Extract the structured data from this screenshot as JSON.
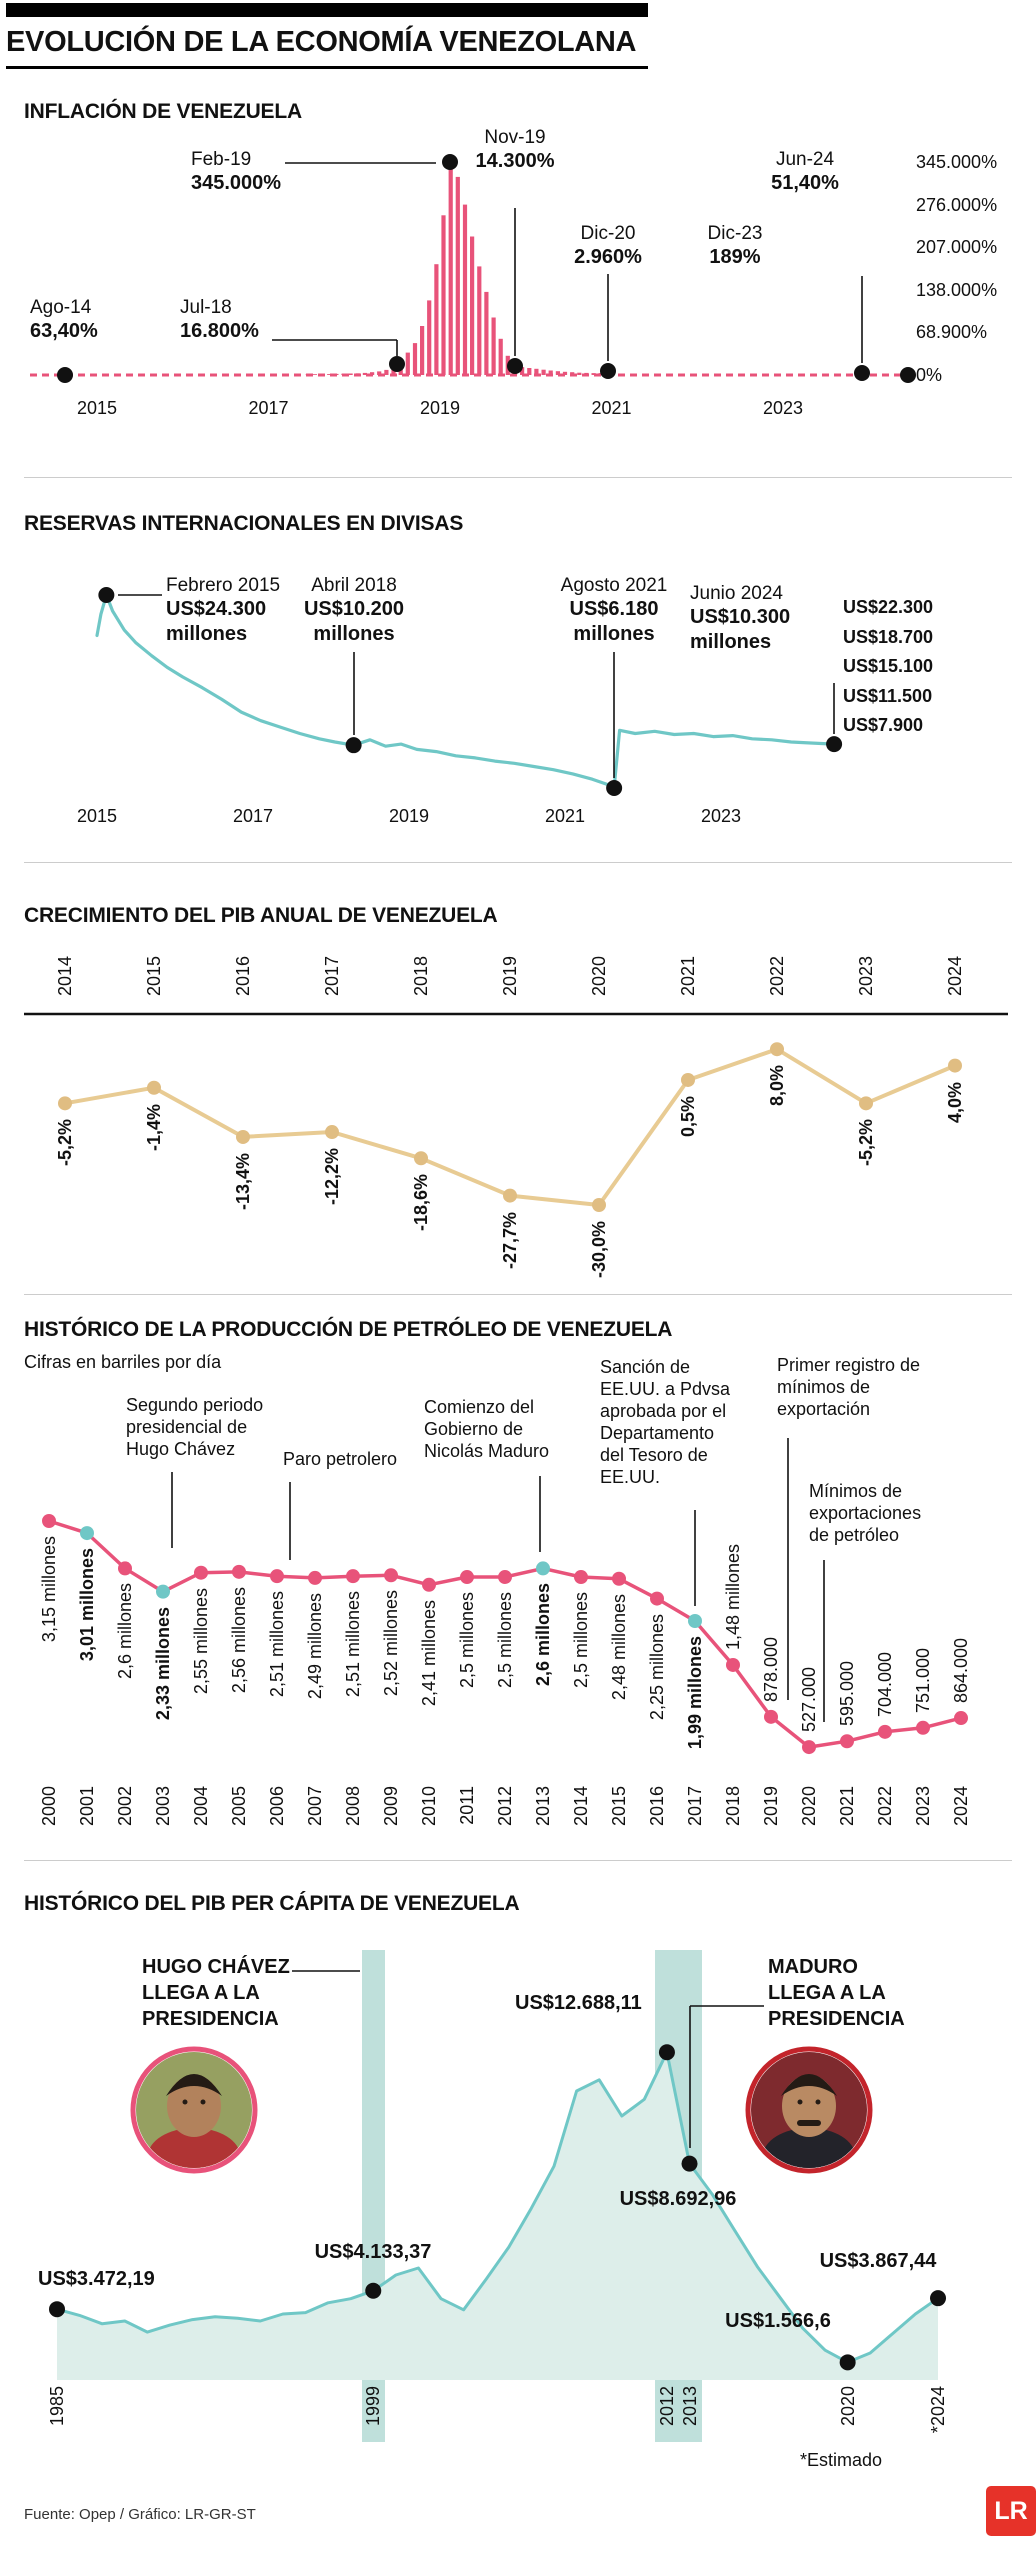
{
  "header": {
    "title": "EVOLUCIÓN DE LA ECONOMÍA VENEZOLANA"
  },
  "footer": {
    "source": "Fuente: Opep / Gráfico: LR-GR-ST",
    "estimate_note": "*Estimado",
    "logo": "LR"
  },
  "colors": {
    "pink": "#e8537a",
    "teal": "#6fc7c6",
    "tan": "#e8cb93",
    "tan_dot": "#e0bd82",
    "band": "#bfe0db",
    "area_fill": "#ddeeea",
    "ink": "#111111",
    "logo_red": "#e63229",
    "divider": "#cccccc"
  },
  "chart_data": [
    {
      "id": "inflation",
      "type": "bar",
      "title": "INFLACIÓN DE VENEZUELA",
      "unit": "%",
      "y_ticks": [
        "345.000%",
        "276.000%",
        "207.000%",
        "138.000%",
        "68.900%",
        "0%"
      ],
      "x_ticks": [
        "2015",
        "2017",
        "2019",
        "2021",
        "2023"
      ],
      "key_points": [
        {
          "date": "Ago-14",
          "value_label": "63,40%",
          "t": 2014.58,
          "value": 63.4
        },
        {
          "date": "Jul-18",
          "value_label": "16.800%",
          "t": 2018.5,
          "value": 16800
        },
        {
          "date": "Feb-19",
          "value_label": "345.000%",
          "t": 2019.08,
          "value": 345000
        },
        {
          "date": "Nov-19",
          "value_label": "14.300%",
          "t": 2019.83,
          "value": 14300
        },
        {
          "date": "Dic-20",
          "value_label": "2.960%",
          "t": 2020.92,
          "value": 2960
        },
        {
          "date": "Dic-23",
          "value_label": "189%",
          "t": 2023.92,
          "value": 189
        },
        {
          "date": "Jun-24",
          "value_label": "51,40%",
          "t": 2024.42,
          "value": 51.4
        }
      ],
      "bars": {
        "t_start": 2017.458,
        "t_step": 0.08333,
        "value_max": 345000,
        "fractions": [
          0.002,
          0.0025,
          0.003,
          0.004,
          0.005,
          0.006,
          0.007,
          0.008,
          0.01,
          0.013,
          0.017,
          0.024,
          0.035,
          0.049,
          0.105,
          0.15,
          0.23,
          0.35,
          0.52,
          0.75,
          1,
          0.93,
          0.8,
          0.65,
          0.51,
          0.39,
          0.27,
          0.17,
          0.09,
          0.041,
          0.037,
          0.033,
          0.029,
          0.025,
          0.021,
          0.018,
          0.015,
          0.013,
          0.011,
          0.01,
          0.009,
          0.0088,
          0.0086
        ]
      }
    },
    {
      "id": "reserves",
      "type": "line",
      "title": "RESERVAS INTERNACIONALES EN DIVISAS",
      "unit": "US$ millones",
      "y_ticks": [
        "US$22.300",
        "US$18.700",
        "US$15.100",
        "US$11.500",
        "US$7.900"
      ],
      "x_ticks": [
        "2015",
        "2017",
        "2019",
        "2021",
        "2023"
      ],
      "key_points": [
        {
          "date": "Febrero 2015",
          "value_label": "US$24.300 millones",
          "t": 2015.12,
          "value": 24300
        },
        {
          "date": "Abril 2018",
          "value_label": "US$10.200 millones",
          "t": 2018.29,
          "value": 10200
        },
        {
          "date": "Agosto 2021",
          "value_label": "US$6.180 millones",
          "t": 2021.63,
          "value": 6180
        },
        {
          "date": "Junio 2024",
          "value_label": "US$10.300 millones",
          "t": 2024.45,
          "value": 10300
        }
      ],
      "series": [
        [
          2015.0,
          20500
        ],
        [
          2015.05,
          22500
        ],
        [
          2015.12,
          24300
        ],
        [
          2015.2,
          22800
        ],
        [
          2015.35,
          21000
        ],
        [
          2015.5,
          19800
        ],
        [
          2015.7,
          18600
        ],
        [
          2015.9,
          17500
        ],
        [
          2016.1,
          16600
        ],
        [
          2016.35,
          15600
        ],
        [
          2016.6,
          14500
        ],
        [
          2016.85,
          13300
        ],
        [
          2017.1,
          12500
        ],
        [
          2017.35,
          11900
        ],
        [
          2017.6,
          11300
        ],
        [
          2017.85,
          10800
        ],
        [
          2018.05,
          10500
        ],
        [
          2018.29,
          10200
        ],
        [
          2018.5,
          10700
        ],
        [
          2018.7,
          10100
        ],
        [
          2018.9,
          10300
        ],
        [
          2019.1,
          9800
        ],
        [
          2019.35,
          9600
        ],
        [
          2019.6,
          9200
        ],
        [
          2019.85,
          9000
        ],
        [
          2020.1,
          8700
        ],
        [
          2020.35,
          8500
        ],
        [
          2020.6,
          8200
        ],
        [
          2020.85,
          7900
        ],
        [
          2021.1,
          7500
        ],
        [
          2021.35,
          7000
        ],
        [
          2021.55,
          6500
        ],
        [
          2021.63,
          6180
        ],
        [
          2021.7,
          11600
        ],
        [
          2021.9,
          11300
        ],
        [
          2022.15,
          11500
        ],
        [
          2022.4,
          11200
        ],
        [
          2022.65,
          11300
        ],
        [
          2022.9,
          11000
        ],
        [
          2023.15,
          11100
        ],
        [
          2023.4,
          10800
        ],
        [
          2023.65,
          10700
        ],
        [
          2023.9,
          10500
        ],
        [
          2024.15,
          10400
        ],
        [
          2024.45,
          10300
        ]
      ]
    },
    {
      "id": "gdp_growth",
      "type": "line",
      "title": "CRECIMIENTO DEL PIB ANUAL DE VENEZUELA",
      "unit": "%",
      "y_range": [
        -30,
        8
      ],
      "categories": [
        "2014",
        "2015",
        "2016",
        "2017",
        "2018",
        "2019",
        "2020",
        "2021",
        "2022",
        "2023",
        "2024"
      ],
      "values": [
        -5.2,
        -1.4,
        -13.4,
        -12.2,
        -18.6,
        -27.7,
        -30.0,
        0.5,
        8.0,
        -5.2,
        4.0
      ],
      "value_labels": [
        "-5,2%",
        "-1,4%",
        "-13,4%",
        "-12,2%",
        "-18,6%",
        "-27,7%",
        "-30,0%",
        "0,5%",
        "8,0%",
        "-5,2%",
        "4,0%"
      ]
    },
    {
      "id": "oil_production",
      "type": "line",
      "title": "HISTÓRICO DE LA PRODUCCIÓN DE PETRÓLEO DE VENEZUELA",
      "subtitle": "Cifras en barriles por día",
      "categories": [
        "2000",
        "2001",
        "2002",
        "2003",
        "2004",
        "2005",
        "2006",
        "2007",
        "2008",
        "2009",
        "2010",
        "2011",
        "2012",
        "2013",
        "2014",
        "2015",
        "2016",
        "2017",
        "2018",
        "2019",
        "2020",
        "2021",
        "2022",
        "2023",
        "2024"
      ],
      "values_mbd": [
        3.15,
        3.01,
        2.6,
        2.33,
        2.55,
        2.56,
        2.51,
        2.49,
        2.51,
        2.52,
        2.41,
        2.5,
        2.5,
        2.6,
        2.5,
        2.48,
        2.25,
        1.99,
        1.48,
        0.878,
        0.527,
        0.595,
        0.704,
        0.751,
        0.864
      ],
      "value_labels": [
        "3,15 millones",
        "3,01 millones",
        "2,6 millones",
        "2,33 millones",
        "2,55 millones",
        "2,56 millones",
        "2,51 millones",
        "2,49 millones",
        "2,51 millones",
        "2,52 millones",
        "2,41 millones",
        "2,5 millones",
        "2,5 millones",
        "2,6 millones",
        "2,5 millones",
        "2,48 millones",
        "2,25 millones",
        "1,99 millones",
        "1,48 millones",
        "878.000",
        "527.000",
        "595.000",
        "704.000",
        "751.000",
        "864.000"
      ],
      "highlight_years": [
        "2001",
        "2003",
        "2013",
        "2017"
      ],
      "annotations": [
        {
          "lines": [
            "Segundo periodo",
            "presidencial de",
            "Hugo Chávez"
          ]
        },
        {
          "lines": [
            "Paro petrolero"
          ]
        },
        {
          "lines": [
            "Comienzo del",
            "Gobierno de",
            "Nicolás Maduro"
          ]
        },
        {
          "lines": [
            "Sanción de",
            "EE.UU. a Pdvsa",
            "aprobada por el",
            "Departamento",
            "del Tesoro de",
            "EE.UU."
          ]
        },
        {
          "lines": [
            "Primer registro de",
            "mínimos de",
            "exportación"
          ]
        },
        {
          "lines": [
            "Mínimos de",
            "exportaciones",
            "de petróleo"
          ]
        }
      ]
    },
    {
      "id": "gdp_per_capita",
      "type": "area",
      "title": "HISTÓRICO DEL PIB PER CÁPITA DE VENEZUELA",
      "unit": "US$",
      "x_ticks": [
        "1985",
        "1999",
        "2012",
        "2013",
        "2020",
        "*2024"
      ],
      "key_points": [
        {
          "year": 1985,
          "value": 3472.19,
          "label": "US$3.472,19"
        },
        {
          "year": 1999,
          "value": 4133.37,
          "label": "US$4.133,37"
        },
        {
          "year": 2012,
          "value": 12688.11,
          "label": "US$12.688,11"
        },
        {
          "year": 2013,
          "value": 8692.96,
          "label": "US$8.692,96"
        },
        {
          "year": 2020,
          "value": 1566.6,
          "label": "US$1.566,6"
        },
        {
          "year": 2024,
          "value": 3867.44,
          "label": "US$3.867,44"
        }
      ],
      "annotations": [
        {
          "lines": [
            "HUGO CHÁVEZ",
            "LLEGA A LA",
            "PRESIDENCIA"
          ]
        },
        {
          "lines": [
            "MADURO",
            "LLEGA A LA",
            "PRESIDENCIA"
          ]
        }
      ],
      "series": [
        [
          1985,
          3472
        ],
        [
          1986,
          3250
        ],
        [
          1987,
          2950
        ],
        [
          1988,
          3050
        ],
        [
          1989,
          2650
        ],
        [
          1990,
          2900
        ],
        [
          1991,
          3100
        ],
        [
          1992,
          3200
        ],
        [
          1993,
          3150
        ],
        [
          1994,
          3050
        ],
        [
          1995,
          3300
        ],
        [
          1996,
          3350
        ],
        [
          1997,
          3700
        ],
        [
          1998,
          3850
        ],
        [
          1999,
          4133
        ],
        [
          2000,
          4700
        ],
        [
          2001,
          4950
        ],
        [
          2002,
          3850
        ],
        [
          2003,
          3450
        ],
        [
          2004,
          4550
        ],
        [
          2005,
          5700
        ],
        [
          2006,
          7100
        ],
        [
          2007,
          8600
        ],
        [
          2008,
          11300
        ],
        [
          2009,
          11700
        ],
        [
          2010,
          10400
        ],
        [
          2011,
          11000
        ],
        [
          2012,
          12688
        ],
        [
          2013,
          8693
        ],
        [
          2014,
          7600
        ],
        [
          2015,
          6300
        ],
        [
          2016,
          5000
        ],
        [
          2017,
          3900
        ],
        [
          2018,
          2800
        ],
        [
          2019,
          2000
        ],
        [
          2020,
          1566
        ],
        [
          2021,
          1900
        ],
        [
          2022,
          2600
        ],
        [
          2023,
          3300
        ],
        [
          2024,
          3867
        ]
      ]
    }
  ]
}
